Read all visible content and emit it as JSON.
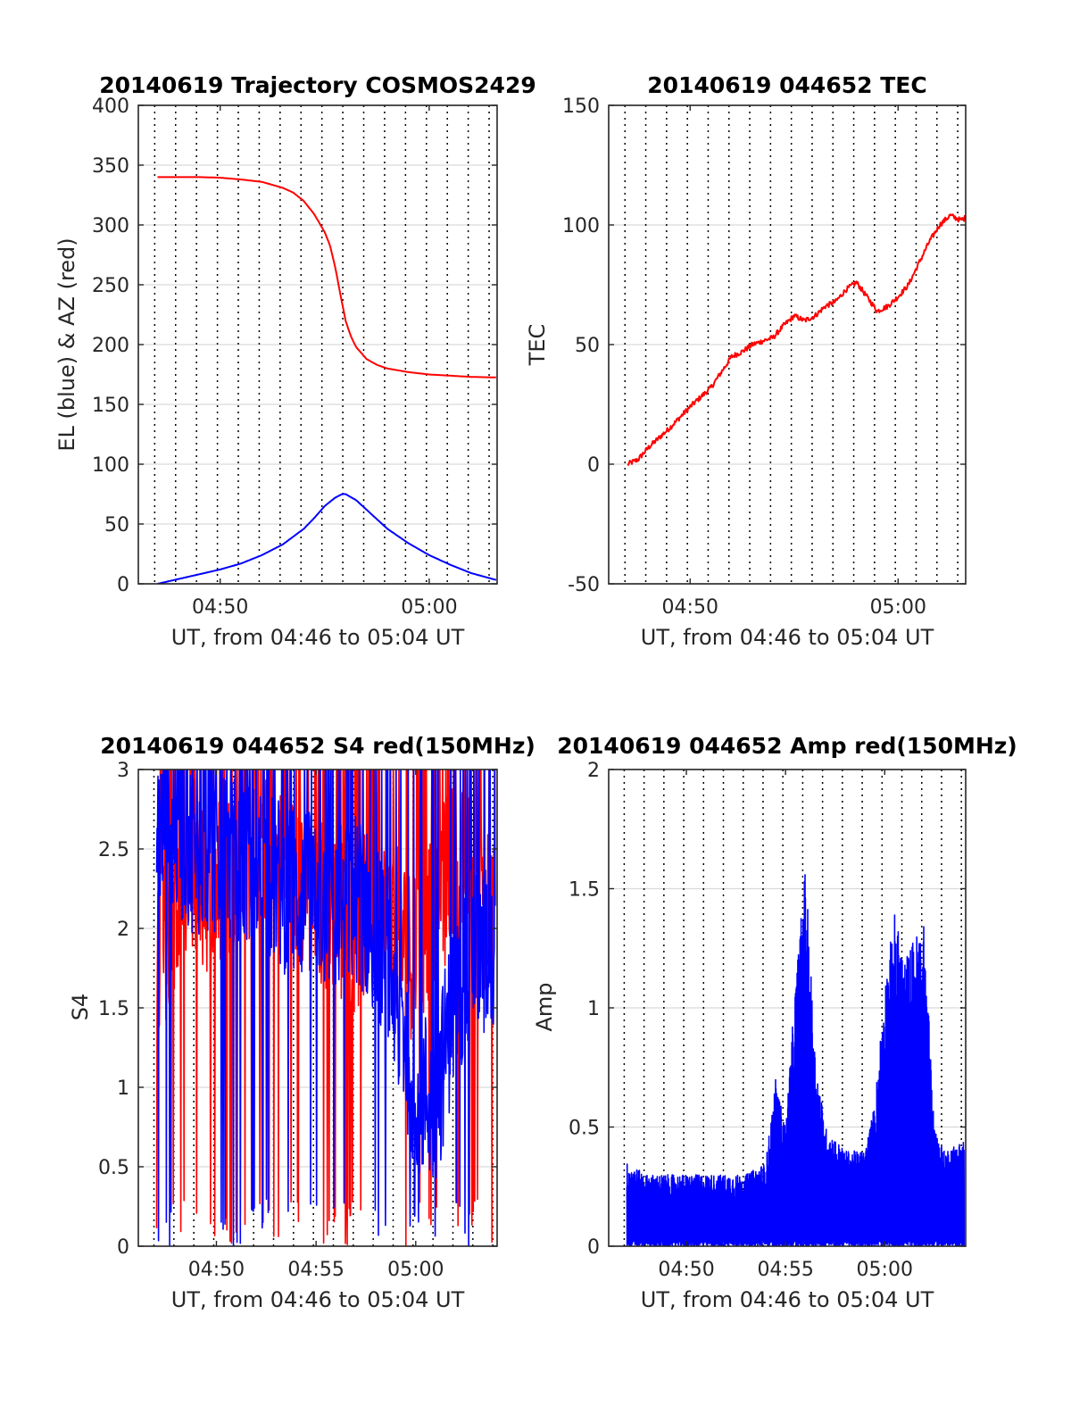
{
  "colors": {
    "red": "#ff0000",
    "blue": "#0000ff",
    "grid": "#d9d9d9",
    "axis": "#262626"
  },
  "chart_data": [
    {
      "id": "trajectory",
      "type": "line",
      "title": "20140619 Trajectory COSMOS2429",
      "xlabel": "UT, from 04:46 to 05:04 UT",
      "ylabel": "EL (blue) & AZ (red)",
      "xlim": [
        "04:46:05",
        "05:03:15"
      ],
      "ylim": [
        0,
        400
      ],
      "yticks": [
        0,
        50,
        100,
        150,
        200,
        250,
        300,
        350,
        400
      ],
      "xticks": [
        {
          "t": "04:50:00",
          "label": "04:50"
        },
        {
          "t": "05:00:00",
          "label": "05:00"
        }
      ],
      "x_dotted_grid": [
        "04:46:52",
        "04:47:52",
        "04:48:52",
        "04:49:52",
        "04:50:52",
        "04:51:52",
        "04:52:52",
        "04:53:52",
        "04:54:52",
        "04:55:52",
        "04:56:52",
        "04:57:52",
        "04:58:52",
        "04:59:52",
        "05:00:52",
        "05:01:52",
        "05:02:52"
      ],
      "y_grid": true,
      "series": [
        {
          "color": "red",
          "x": [
            "04:47:00",
            "04:48:00",
            "04:49:00",
            "04:50:00",
            "04:51:00",
            "04:52:00",
            "04:53:00",
            "04:53:30",
            "04:54:00",
            "04:54:30",
            "04:55:00",
            "04:55:15",
            "04:55:30",
            "04:55:45",
            "04:56:00",
            "04:56:15",
            "04:56:30",
            "04:57:00",
            "04:57:30",
            "04:58:00",
            "04:59:00",
            "05:00:00",
            "05:01:00",
            "05:02:00",
            "05:03:15"
          ],
          "values": [
            340,
            340,
            340,
            339.5,
            338,
            336,
            331,
            327,
            320,
            309,
            294,
            283,
            265,
            242,
            220,
            207,
            198,
            188,
            183,
            180,
            177,
            175,
            174,
            173,
            172.5
          ]
        },
        {
          "color": "blue",
          "x": [
            "04:47:00",
            "04:48:00",
            "04:49:00",
            "04:50:00",
            "04:51:00",
            "04:52:00",
            "04:53:00",
            "04:54:00",
            "04:54:30",
            "04:55:00",
            "04:55:30",
            "04:55:50",
            "04:56:00",
            "04:56:30",
            "04:57:00",
            "04:58:00",
            "04:59:00",
            "05:00:00",
            "05:01:00",
            "05:02:00",
            "05:03:15"
          ],
          "values": [
            0,
            4,
            8,
            12,
            17,
            24,
            33,
            46,
            55,
            65,
            72,
            75,
            75,
            70,
            62,
            46,
            34,
            24,
            16,
            9,
            3
          ]
        }
      ]
    },
    {
      "id": "tec",
      "type": "line",
      "title": "20140619 044652 TEC",
      "xlabel": "UT, from 04:46 to 05:04 UT",
      "ylabel": "TEC",
      "xlim": [
        "04:46:05",
        "05:03:15"
      ],
      "ylim": [
        -50,
        150
      ],
      "yticks": [
        -50,
        0,
        50,
        100,
        150
      ],
      "xticks": [
        {
          "t": "04:50:00",
          "label": "04:50"
        },
        {
          "t": "05:00:00",
          "label": "05:00"
        }
      ],
      "x_dotted_grid": [
        "04:46:52",
        "04:47:52",
        "04:48:52",
        "04:49:52",
        "04:50:52",
        "04:51:52",
        "04:52:52",
        "04:53:52",
        "04:54:52",
        "04:55:52",
        "04:56:52",
        "04:57:52",
        "04:58:52",
        "04:59:52",
        "05:00:52",
        "05:01:52",
        "05:02:52"
      ],
      "y_grid": true,
      "series": [
        {
          "color": "red",
          "x": [
            "04:47:00",
            "04:47:30",
            "04:48:00",
            "04:49:00",
            "04:50:00",
            "04:51:00",
            "04:52:00",
            "04:52:30",
            "04:53:00",
            "04:54:00",
            "04:54:30",
            "04:55:00",
            "04:55:30",
            "04:56:00",
            "04:56:30",
            "04:57:00",
            "04:57:30",
            "04:58:00",
            "04:58:30",
            "04:59:00",
            "04:59:30",
            "05:00:00",
            "05:00:30",
            "05:01:00",
            "05:01:30",
            "05:02:00",
            "05:02:30",
            "05:03:00",
            "05:03:15"
          ],
          "values": [
            0,
            2,
            7,
            15,
            24,
            32,
            45,
            47,
            50,
            53,
            58,
            62,
            60,
            62,
            66,
            68,
            73,
            76,
            70,
            64,
            66,
            70,
            75,
            84,
            93,
            100,
            104,
            102,
            103
          ]
        }
      ]
    },
    {
      "id": "s4",
      "type": "line",
      "title": "20140619 044652 S4 red(150MHz)",
      "xlabel": "UT, from 04:46 to 05:04 UT",
      "ylabel": "S4",
      "xlim": [
        "04:46:05",
        "05:04:05"
      ],
      "ylim": [
        0,
        3
      ],
      "yticks": [
        0,
        0.5,
        1,
        1.5,
        2,
        2.5,
        3
      ],
      "xticks": [
        {
          "t": "04:50:00",
          "label": "04:50"
        },
        {
          "t": "04:55:00",
          "label": "04:55"
        },
        {
          "t": "05:00:00",
          "label": "05:00"
        }
      ],
      "x_dotted_grid": [
        "04:46:52",
        "04:47:52",
        "04:48:52",
        "04:49:52",
        "04:50:52",
        "04:51:52",
        "04:52:52",
        "04:53:52",
        "04:54:52",
        "04:55:52",
        "04:56:52",
        "04:57:52",
        "04:58:52",
        "04:59:52",
        "05:00:52",
        "05:01:52",
        "05:02:52",
        "05:03:52"
      ],
      "y_grid": true,
      "series": [
        {
          "color": "red",
          "noisy": true,
          "x": [
            "04:47:00",
            "04:48:00",
            "04:49:00",
            "04:50:00",
            "04:51:00",
            "04:52:00",
            "04:53:00",
            "04:54:00",
            "04:55:00",
            "04:56:00",
            "04:57:00",
            "04:58:00",
            "04:59:00",
            "05:00:00",
            "05:01:00",
            "05:02:00",
            "05:03:00",
            "05:04:00"
          ],
          "values": [
            1.9,
            2.0,
            2.2,
            2.3,
            2.4,
            2.5,
            2.4,
            2.3,
            2.2,
            2.1,
            2.0,
            2.1,
            2.0,
            1.8,
            2.2,
            2.4,
            2.3,
            2.0
          ]
        },
        {
          "color": "blue",
          "noisy": true,
          "x": [
            "04:47:00",
            "04:48:00",
            "04:49:00",
            "04:50:00",
            "04:51:00",
            "04:52:00",
            "04:53:00",
            "04:54:00",
            "04:55:00",
            "04:56:00",
            "04:57:00",
            "04:58:00",
            "04:59:00",
            "05:00:00",
            "05:01:00",
            "05:02:00",
            "05:03:00",
            "05:04:00"
          ],
          "values": [
            2.6,
            2.6,
            2.5,
            2.5,
            2.4,
            2.4,
            2.3,
            2.2,
            2.2,
            2.1,
            2.2,
            2.0,
            1.6,
            1.0,
            0.9,
            1.6,
            1.9,
            1.8
          ]
        }
      ]
    },
    {
      "id": "amp",
      "type": "line",
      "title": "20140619 044652 Amp red(150MHz)",
      "xlabel": "UT, from 04:46 to 05:04 UT",
      "ylabel": "Amp",
      "xlim": [
        "04:46:05",
        "05:04:05"
      ],
      "ylim": [
        0,
        2
      ],
      "yticks": [
        0,
        0.5,
        1,
        1.5,
        2
      ],
      "xticks": [
        {
          "t": "04:50:00",
          "label": "04:50"
        },
        {
          "t": "04:55:00",
          "label": "04:55"
        },
        {
          "t": "05:00:00",
          "label": "05:00"
        }
      ],
      "x_dotted_grid": [
        "04:46:52",
        "04:47:52",
        "04:48:52",
        "04:49:52",
        "04:50:52",
        "04:51:52",
        "04:52:52",
        "04:53:52",
        "04:54:52",
        "04:55:52",
        "04:56:52",
        "04:57:52",
        "04:58:52",
        "04:59:52",
        "05:00:52",
        "05:01:52",
        "05:02:52",
        "05:03:52"
      ],
      "y_grid": true,
      "series": [
        {
          "color": "blue",
          "noisy": true,
          "x": [
            "04:47:00",
            "04:48:00",
            "04:49:00",
            "04:50:00",
            "04:51:00",
            "04:52:00",
            "04:53:00",
            "04:54:00",
            "04:54:30",
            "04:55:00",
            "04:55:30",
            "04:56:00",
            "04:56:30",
            "04:57:00",
            "04:58:00",
            "04:59:00",
            "04:59:30",
            "05:00:00",
            "05:00:30",
            "05:01:00",
            "05:01:30",
            "05:02:00",
            "05:02:30",
            "05:03:00",
            "05:04:00"
          ],
          "values": [
            0.35,
            0.3,
            0.3,
            0.3,
            0.3,
            0.3,
            0.3,
            0.35,
            0.7,
            0.5,
            1.1,
            1.6,
            0.8,
            0.5,
            0.4,
            0.4,
            0.6,
            1.1,
            1.4,
            1.2,
            1.3,
            1.35,
            0.5,
            0.4,
            0.45
          ]
        }
      ]
    }
  ]
}
